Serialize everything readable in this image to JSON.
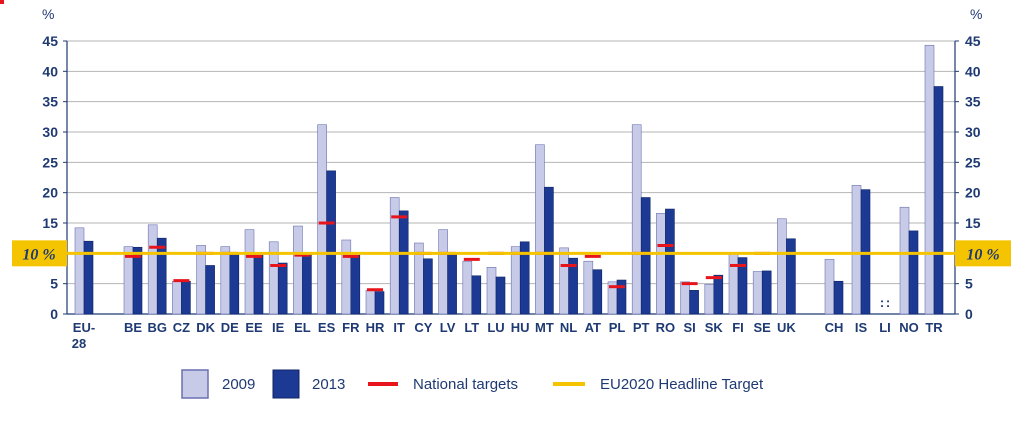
{
  "chart_data": {
    "type": "bar",
    "title": "",
    "xlabel": "",
    "ylabel": "%",
    "ylim": [
      0,
      45
    ],
    "yticks": [
      0,
      5,
      10,
      15,
      20,
      25,
      30,
      35,
      40,
      45
    ],
    "grid": true,
    "legend_position": "bottom",
    "headline_target": {
      "value": 10,
      "label": "10 %",
      "name": "EU2020 Headline Target"
    },
    "categories": [
      "EU-28",
      "BE",
      "BG",
      "CZ",
      "DK",
      "DE",
      "EE",
      "IE",
      "EL",
      "ES",
      "FR",
      "HR",
      "IT",
      "CY",
      "LV",
      "LT",
      "LU",
      "HU",
      "MT",
      "NL",
      "AT",
      "PL",
      "PT",
      "RO",
      "SI",
      "SK",
      "FI",
      "SE",
      "UK",
      "CH",
      "IS",
      "LI",
      "NO",
      "TR"
    ],
    "series": [
      {
        "name": "2009",
        "color": "#c8cbe8",
        "values": [
          14.2,
          11.1,
          14.7,
          5.4,
          11.3,
          11.1,
          13.9,
          11.9,
          14.5,
          31.2,
          12.2,
          3.9,
          19.2,
          11.7,
          13.9,
          8.7,
          7.7,
          11.1,
          27.9,
          10.9,
          8.7,
          5.3,
          31.2,
          16.6,
          5.3,
          4.9,
          9.9,
          7.0,
          15.7,
          9.0,
          21.2,
          null,
          17.6,
          44.3
        ]
      },
      {
        "name": "2013",
        "color": "#1c3a94",
        "values": [
          12.0,
          11.0,
          12.5,
          5.4,
          8.0,
          9.9,
          9.7,
          8.4,
          10.1,
          23.6,
          9.7,
          3.7,
          17.0,
          9.1,
          9.8,
          6.3,
          6.1,
          11.9,
          20.9,
          9.2,
          7.3,
          5.6,
          19.2,
          17.3,
          3.9,
          6.4,
          9.3,
          7.1,
          12.4,
          5.4,
          20.5,
          null,
          13.7,
          37.5
        ]
      }
    ],
    "national_targets": {
      "name": "National targets",
      "color": "#e8141b",
      "values": [
        null,
        9.5,
        11.0,
        5.5,
        10.0,
        10.0,
        9.5,
        8.0,
        9.7,
        15.0,
        9.5,
        4.0,
        16.0,
        10.0,
        10.0,
        9.0,
        10.0,
        10.0,
        10.0,
        8.0,
        9.5,
        4.5,
        10.0,
        11.3,
        5.0,
        6.0,
        8.0,
        10.0,
        null,
        null,
        null,
        null,
        null,
        null
      ]
    },
    "annotations": [
      {
        "category": "LI",
        "text": ":"
      },
      {
        "category": "LI",
        "text": ":"
      }
    ]
  },
  "legend": {
    "items": [
      {
        "label": "2009",
        "color": "#c8cbe8"
      },
      {
        "label": "2013",
        "color": "#1c3a94"
      },
      {
        "label": "National targets",
        "color": "#e8141b"
      },
      {
        "label": "EU2020 Headline Target",
        "color": "#f5c400"
      }
    ]
  },
  "colors": {
    "axis": "#1f3a73",
    "grid": "#b5b5b5",
    "headline": "#f5c400",
    "label_bg": "#f5c400",
    "corner_accent": "#e8141b"
  }
}
